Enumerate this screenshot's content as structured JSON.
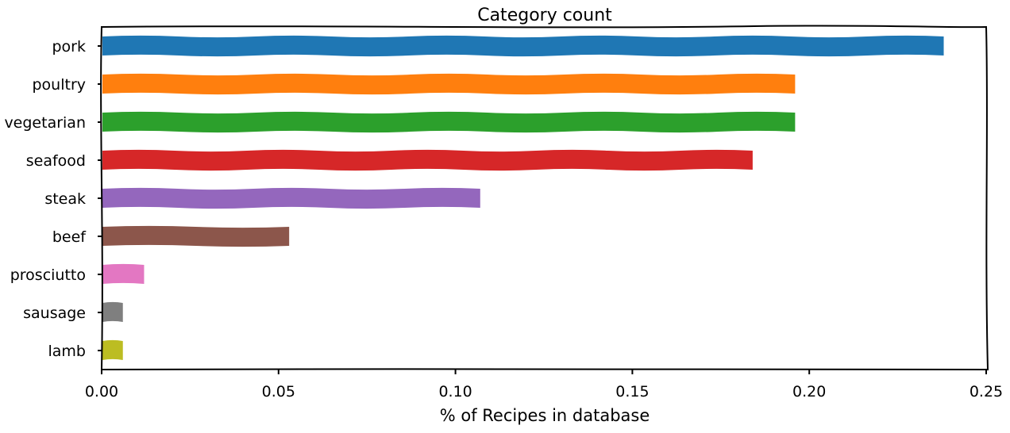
{
  "chart_data": {
    "type": "bar",
    "orientation": "horizontal",
    "title": "Category count",
    "xlabel": "% of Recipes in database",
    "ylabel": "",
    "xlim": [
      0,
      0.25
    ],
    "xticks": [
      "0.00",
      "0.05",
      "0.10",
      "0.15",
      "0.20",
      "0.25"
    ],
    "categories": [
      "pork",
      "poultry",
      "vegetarian",
      "seafood",
      "steak",
      "beef",
      "prosciutto",
      "sausage",
      "lamb"
    ],
    "values": [
      0.238,
      0.196,
      0.196,
      0.184,
      0.107,
      0.053,
      0.012,
      0.006,
      0.006
    ],
    "colors": [
      "#1f77b4",
      "#ff7f0e",
      "#2ca02c",
      "#d62728",
      "#9467bd",
      "#8c564b",
      "#e377c2",
      "#7f7f7f",
      "#bcbd22"
    ],
    "grid": false,
    "legend": "none",
    "style": "xkcd"
  }
}
